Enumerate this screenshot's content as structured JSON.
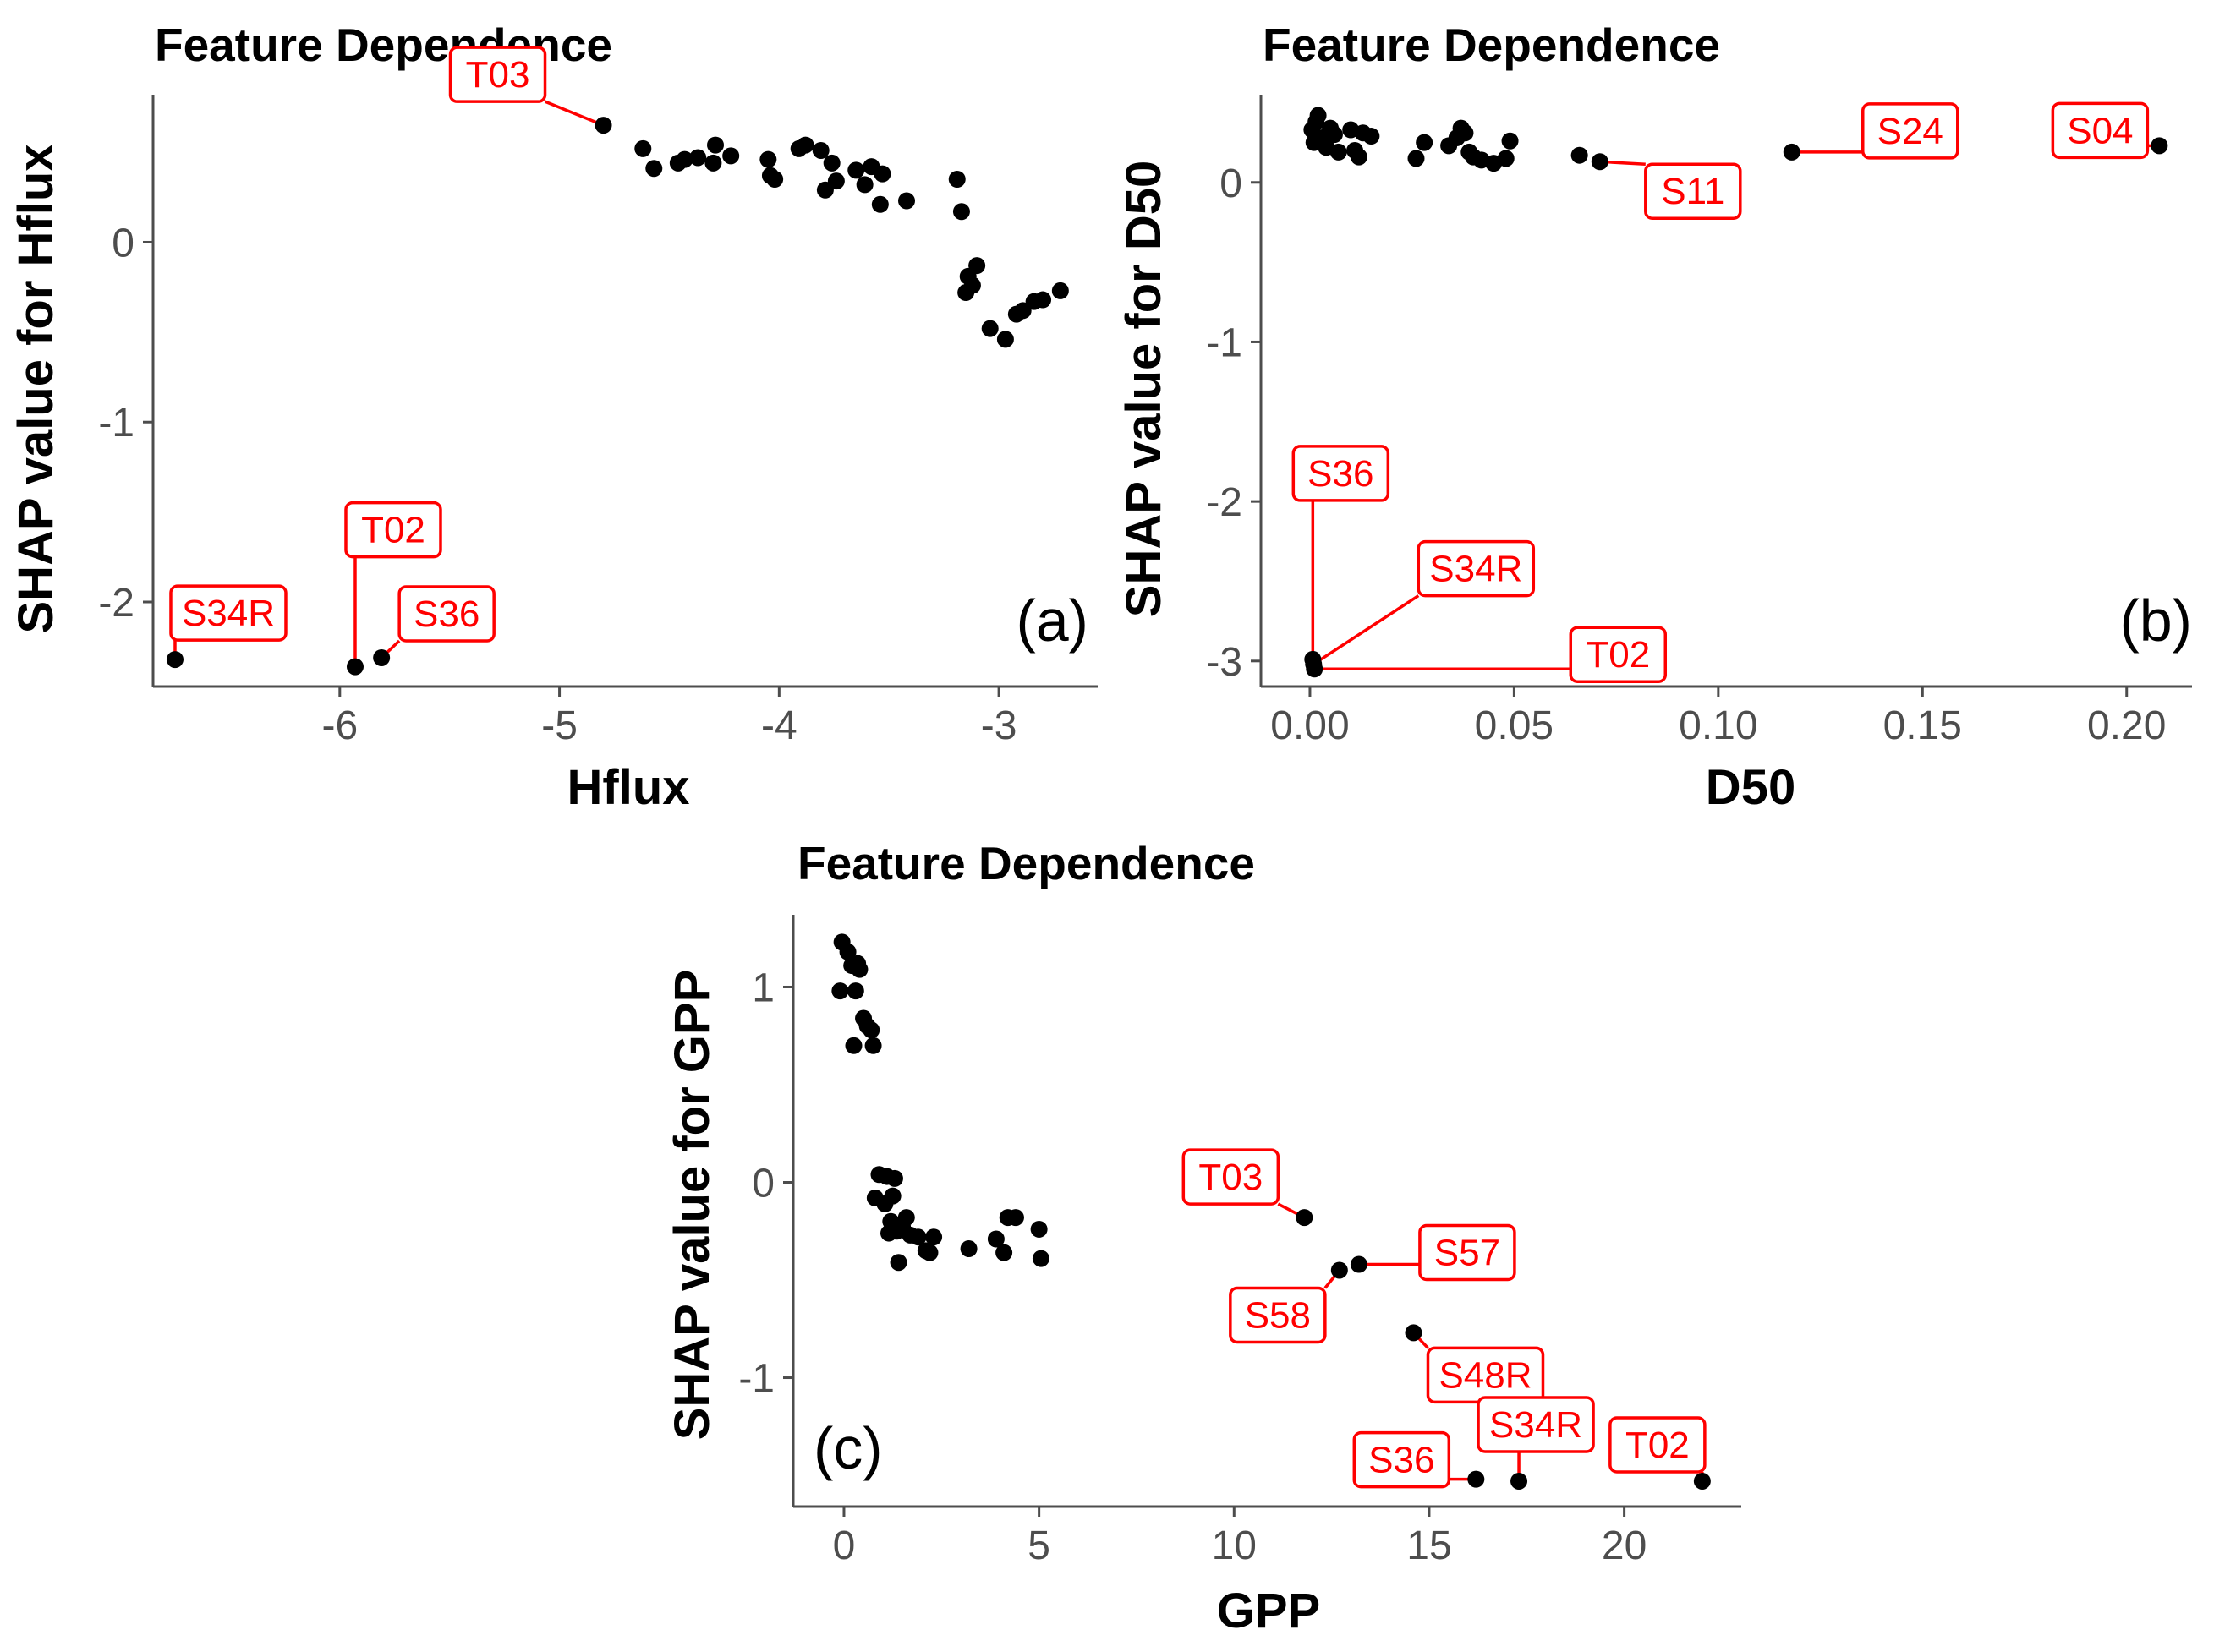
{
  "chart_data": [
    {
      "type": "scatter",
      "title": "Feature Dependence",
      "xlabel": "Hflux",
      "ylabel": "SHAP value for Hflux",
      "panel": "(a)",
      "xlim": [
        -6.85,
        -2.55
      ],
      "ylim": [
        -2.47,
        0.82
      ],
      "xticks": [
        -6,
        -5,
        -4,
        -3
      ],
      "xtick_labels": [
        "-6",
        "-5",
        "-4",
        "-3"
      ],
      "yticks": [
        0,
        -1,
        -2
      ],
      "ytick_labels": [
        "0",
        "-1",
        "-2"
      ],
      "points": [
        [
          -6.75,
          -2.32
        ],
        [
          -5.93,
          -2.36
        ],
        [
          -5.81,
          -2.31
        ],
        [
          -4.8,
          0.65
        ],
        [
          -4.62,
          0.52
        ],
        [
          -4.57,
          0.41
        ],
        [
          -4.46,
          0.44
        ],
        [
          -4.43,
          0.46
        ],
        [
          -4.37,
          0.47
        ],
        [
          -4.3,
          0.44
        ],
        [
          -4.29,
          0.54
        ],
        [
          -4.22,
          0.48
        ],
        [
          -4.05,
          0.46
        ],
        [
          -4.04,
          0.37
        ],
        [
          -4.02,
          0.35
        ],
        [
          -3.91,
          0.52
        ],
        [
          -3.88,
          0.54
        ],
        [
          -3.81,
          0.51
        ],
        [
          -3.79,
          0.29
        ],
        [
          -3.76,
          0.44
        ],
        [
          -3.74,
          0.34
        ],
        [
          -3.65,
          0.4
        ],
        [
          -3.61,
          0.32
        ],
        [
          -3.58,
          0.42
        ],
        [
          -3.54,
          0.21
        ],
        [
          -3.53,
          0.38
        ],
        [
          -3.42,
          0.23
        ],
        [
          -3.19,
          0.35
        ],
        [
          -3.17,
          0.17
        ],
        [
          -3.15,
          -0.28
        ],
        [
          -3.14,
          -0.19
        ],
        [
          -3.12,
          -0.24
        ],
        [
          -3.1,
          -0.13
        ],
        [
          -3.04,
          -0.48
        ],
        [
          -2.97,
          -0.54
        ],
        [
          -2.92,
          -0.4
        ],
        [
          -2.89,
          -0.38
        ],
        [
          -2.84,
          -0.33
        ],
        [
          -2.8,
          -0.32
        ],
        [
          -2.72,
          -0.27
        ]
      ],
      "labels": [
        {
          "text": "S34R",
          "x": -6.75,
          "y": -2.32
        },
        {
          "text": "T02",
          "x": -5.93,
          "y": -2.36
        },
        {
          "text": "S36",
          "x": -5.81,
          "y": -2.31
        },
        {
          "text": "T03",
          "x": -4.8,
          "y": 0.65
        }
      ]
    },
    {
      "type": "scatter",
      "title": "Feature Dependence",
      "xlabel": "D50",
      "ylabel": "SHAP value for D50",
      "panel": "(b)",
      "xlim": [
        -0.012,
        0.216
      ],
      "ylim": [
        -3.16,
        0.55
      ],
      "xticks": [
        0.0,
        0.05,
        0.1,
        0.15,
        0.2
      ],
      "xtick_labels": [
        "0.00",
        "0.05",
        "0.10",
        "0.15",
        "0.20"
      ],
      "yticks": [
        0,
        -1,
        -2,
        -3
      ],
      "ytick_labels": [
        "0",
        "-1",
        "-2",
        "-3"
      ],
      "points": [
        [
          0.0005,
          0.33
        ],
        [
          0.001,
          0.25
        ],
        [
          0.0015,
          0.38
        ],
        [
          0.002,
          0.42
        ],
        [
          0.003,
          0.28
        ],
        [
          0.004,
          0.22
        ],
        [
          0.005,
          0.34
        ],
        [
          0.006,
          0.3
        ],
        [
          0.007,
          0.19
        ],
        [
          0.01,
          0.33
        ],
        [
          0.011,
          0.2
        ],
        [
          0.012,
          0.16
        ],
        [
          0.013,
          0.31
        ],
        [
          0.015,
          0.29
        ],
        [
          0.026,
          0.15
        ],
        [
          0.028,
          0.25
        ],
        [
          0.034,
          0.23
        ],
        [
          0.036,
          0.28
        ],
        [
          0.037,
          0.34
        ],
        [
          0.038,
          0.31
        ],
        [
          0.039,
          0.19
        ],
        [
          0.04,
          0.16
        ],
        [
          0.042,
          0.14
        ],
        [
          0.045,
          0.12
        ],
        [
          0.048,
          0.15
        ],
        [
          0.049,
          0.26
        ],
        [
          0.066,
          0.17
        ],
        [
          0.071,
          0.13
        ],
        [
          0.118,
          0.19
        ],
        [
          0.208,
          0.23
        ],
        [
          0.0007,
          -2.99
        ],
        [
          0.0009,
          -3.02
        ],
        [
          0.0011,
          -3.05
        ]
      ],
      "labels": [
        {
          "text": "S36",
          "x": 0.0007,
          "y": -2.99
        },
        {
          "text": "S34R",
          "x": 0.0009,
          "y": -3.02
        },
        {
          "text": "T02",
          "x": 0.0011,
          "y": -3.05
        },
        {
          "text": "S11",
          "x": 0.071,
          "y": 0.13
        },
        {
          "text": "S24",
          "x": 0.118,
          "y": 0.19
        },
        {
          "text": "S04",
          "x": 0.208,
          "y": 0.23
        }
      ]
    },
    {
      "type": "scatter",
      "title": "Feature Dependence",
      "xlabel": "GPP",
      "ylabel": "SHAP value for GPP",
      "panel": "(c)",
      "xlim": [
        -1.3,
        23.0
      ],
      "ylim": [
        -1.66,
        1.37
      ],
      "xticks": [
        0,
        5,
        10,
        15,
        20
      ],
      "xtick_labels": [
        "0",
        "5",
        "10",
        "15",
        "20"
      ],
      "yticks": [
        1,
        0,
        -1
      ],
      "ytick_labels": [
        "1",
        "0",
        "-1"
      ],
      "points": [
        [
          -0.1,
          0.98
        ],
        [
          -0.05,
          1.23
        ],
        [
          0.1,
          1.18
        ],
        [
          0.2,
          1.11
        ],
        [
          0.3,
          0.98
        ],
        [
          0.35,
          1.12
        ],
        [
          0.4,
          1.09
        ],
        [
          0.25,
          0.7
        ],
        [
          0.5,
          0.84
        ],
        [
          0.6,
          0.8
        ],
        [
          0.7,
          0.78
        ],
        [
          0.75,
          0.7
        ],
        [
          0.8,
          -0.08
        ],
        [
          0.9,
          0.04
        ],
        [
          1.05,
          -0.11
        ],
        [
          1.1,
          0.03
        ],
        [
          1.15,
          -0.26
        ],
        [
          1.2,
          -0.2
        ],
        [
          1.25,
          -0.07
        ],
        [
          1.3,
          0.02
        ],
        [
          1.35,
          -0.25
        ],
        [
          1.4,
          -0.41
        ],
        [
          1.5,
          -0.23
        ],
        [
          1.6,
          -0.18
        ],
        [
          1.7,
          -0.27
        ],
        [
          1.9,
          -0.28
        ],
        [
          2.1,
          -0.35
        ],
        [
          2.2,
          -0.36
        ],
        [
          2.3,
          -0.28
        ],
        [
          3.2,
          -0.34
        ],
        [
          3.9,
          -0.29
        ],
        [
          4.1,
          -0.36
        ],
        [
          4.2,
          -0.18
        ],
        [
          4.4,
          -0.18
        ],
        [
          5.0,
          -0.24
        ],
        [
          5.05,
          -0.39
        ],
        [
          11.8,
          -0.18
        ],
        [
          12.7,
          -0.45
        ],
        [
          13.2,
          -0.42
        ],
        [
          14.6,
          -0.77
        ],
        [
          16.2,
          -1.52
        ],
        [
          17.3,
          -1.53
        ],
        [
          22.0,
          -1.53
        ]
      ],
      "labels": [
        {
          "text": "T03",
          "x": 11.8,
          "y": -0.18
        },
        {
          "text": "S57",
          "x": 13.2,
          "y": -0.42
        },
        {
          "text": "S58",
          "x": 12.7,
          "y": -0.45
        },
        {
          "text": "S48R",
          "x": 14.6,
          "y": -0.77
        },
        {
          "text": "S36",
          "x": 16.2,
          "y": -1.52
        },
        {
          "text": "S34R",
          "x": 17.3,
          "y": -1.53
        },
        {
          "text": "T02",
          "x": 22.0,
          "y": -1.53
        }
      ]
    }
  ]
}
